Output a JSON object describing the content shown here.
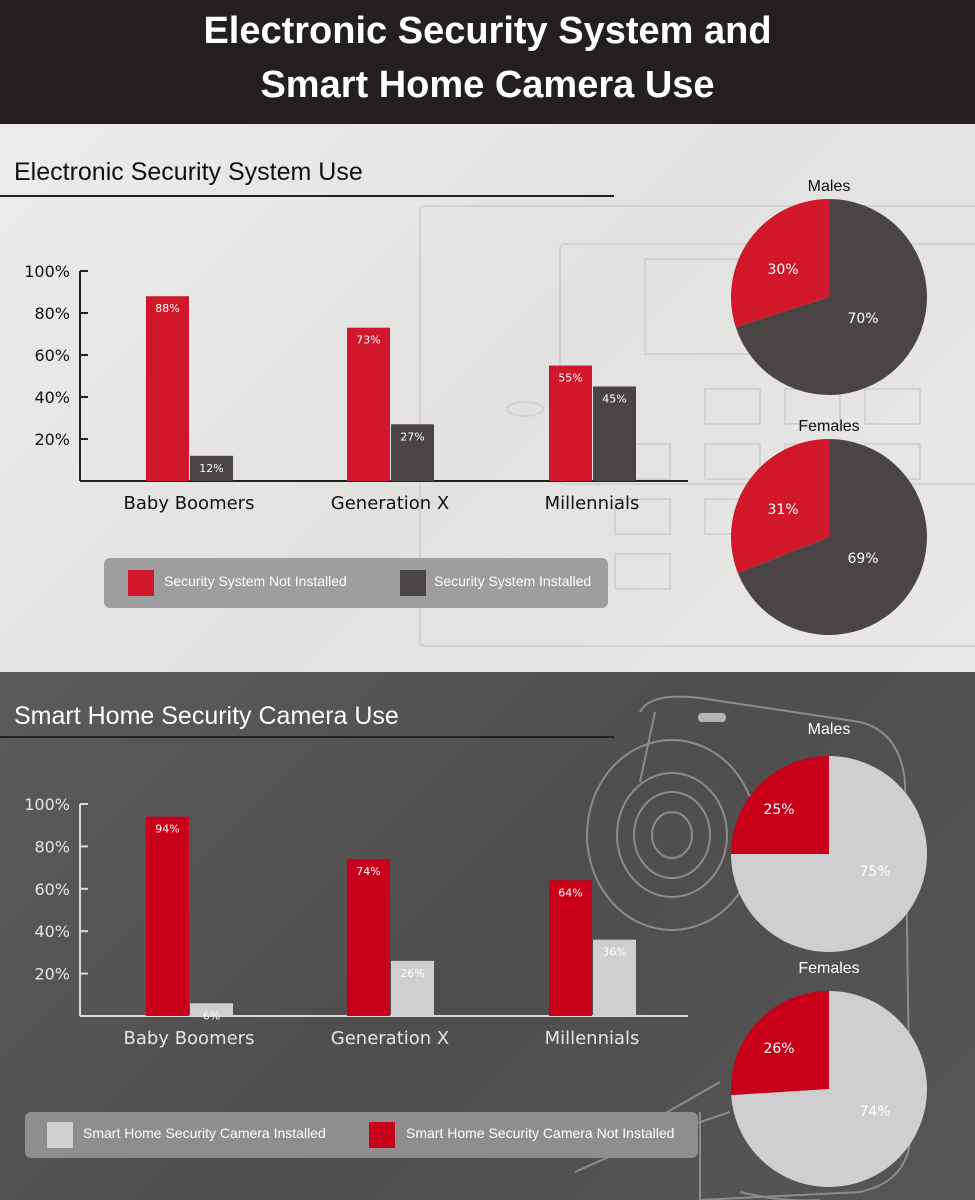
{
  "header": {
    "title_line1": "Electronic Security System and",
    "title_line2": "Smart Home Camera Use"
  },
  "colors": {
    "red": "#d0182a",
    "red_dark": "#c8001a",
    "dark": "#4a4445",
    "light": "#cfcfd1"
  },
  "chart_data": [
    {
      "type": "bar",
      "title": "Electronic Security System Use",
      "categories": [
        "Baby Boomers",
        "Generation X",
        "Millennials"
      ],
      "series": [
        {
          "name": "Security System Not Installed",
          "values": [
            88,
            73,
            55
          ]
        },
        {
          "name": "Security System Installed",
          "values": [
            12,
            27,
            45
          ]
        }
      ],
      "data_labels": [
        [
          "88%",
          "73%",
          "55%"
        ],
        [
          "12%",
          "27%",
          "45%"
        ]
      ],
      "yticks": [
        "100%",
        "80%",
        "60%",
        "40%",
        "20%"
      ],
      "ylim": [
        0,
        100
      ]
    },
    {
      "type": "pie",
      "title": "Males",
      "slices": [
        {
          "name": "Security System Not Installed",
          "value": 30,
          "label": "30%"
        },
        {
          "name": "Security System Installed",
          "value": 70,
          "label": "70%"
        }
      ]
    },
    {
      "type": "pie",
      "title": "Females",
      "slices": [
        {
          "name": "Security System Not Installed",
          "value": 31,
          "label": "31%"
        },
        {
          "name": "Security System Installed",
          "value": 69,
          "label": "69%"
        }
      ]
    },
    {
      "type": "bar",
      "title": "Smart Home Security Camera Use",
      "categories": [
        "Baby Boomers",
        "Generation X",
        "Millennials"
      ],
      "series": [
        {
          "name": "Smart Home Security Camera Not Installed",
          "values": [
            94,
            74,
            64
          ]
        },
        {
          "name": "Smart Home Security Camera Installed",
          "values": [
            6,
            26,
            36
          ]
        }
      ],
      "data_labels": [
        [
          "94%",
          "74%",
          "64%"
        ],
        [
          "6%",
          "26%",
          "36%"
        ]
      ],
      "yticks": [
        "100%",
        "80%",
        "60%",
        "40%",
        "20%"
      ],
      "ylim": [
        0,
        100
      ]
    },
    {
      "type": "pie",
      "title": "Males",
      "slices": [
        {
          "name": "Smart Home Security Camera Not Installed",
          "value": 25,
          "label": "25%"
        },
        {
          "name": "Smart Home Security Camera Installed",
          "value": 75,
          "label": "75%"
        }
      ]
    },
    {
      "type": "pie",
      "title": "Females",
      "slices": [
        {
          "name": "Smart Home Security Camera Not Installed",
          "value": 26,
          "label": "26%"
        },
        {
          "name": "Smart Home Security Camera Installed",
          "value": 74,
          "label": "74%"
        }
      ]
    }
  ],
  "legends": {
    "sec1": [
      "Security System Not Installed",
      "Security System Installed"
    ],
    "sec2": [
      "Smart Home Security Camera Installed",
      "Smart Home Security Camera Not Installed"
    ]
  }
}
